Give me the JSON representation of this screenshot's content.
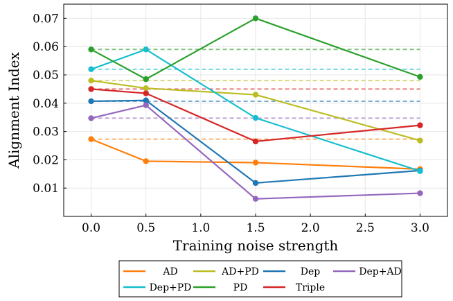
{
  "chart_data": {
    "type": "line",
    "xlabel": "Training noise strength",
    "ylabel": "Alignment Index",
    "xlim": [
      -0.25,
      3.25
    ],
    "ylim": [
      0.0,
      0.075
    ],
    "x_ticks": [
      0.0,
      0.5,
      1.0,
      1.5,
      2.0,
      2.5,
      3.0
    ],
    "x_tick_labels": [
      "0.0",
      "0.5",
      "1.0",
      "1.5",
      "2.0",
      "2.5",
      "3.0"
    ],
    "y_ticks": [
      0.01,
      0.02,
      0.03,
      0.04,
      0.05,
      0.06,
      0.07
    ],
    "y_tick_labels": [
      "0.01",
      "0.02",
      "0.03",
      "0.04",
      "0.05",
      "0.06",
      "0.07"
    ],
    "grid": true,
    "legend_position": "bottom",
    "x": [
      0.0,
      0.5,
      1.5,
      3.0
    ],
    "series": [
      {
        "name": "AD",
        "color": "#ff7f0e",
        "values": [
          0.0273,
          0.0195,
          0.019,
          0.0167
        ],
        "baseline": 0.0273
      },
      {
        "name": "AD+PD",
        "color": "#bcbd22",
        "values": [
          0.048,
          0.0453,
          0.043,
          0.0268
        ],
        "baseline": 0.048
      },
      {
        "name": "Dep",
        "color": "#1f77b4",
        "values": [
          0.0407,
          0.041,
          0.0118,
          0.0162
        ],
        "baseline": 0.0407
      },
      {
        "name": "Dep+AD",
        "color": "#9467bd",
        "values": [
          0.0347,
          0.0393,
          0.0062,
          0.0082
        ],
        "baseline": 0.0347
      },
      {
        "name": "Dep+PD",
        "color": "#17becf",
        "values": [
          0.052,
          0.059,
          0.0348,
          0.016
        ],
        "baseline": 0.052
      },
      {
        "name": "PD",
        "color": "#2ca02c",
        "values": [
          0.059,
          0.0485,
          0.07,
          0.0493
        ],
        "baseline": 0.059
      },
      {
        "name": "Triple",
        "color": "#d62728",
        "values": [
          0.045,
          0.0435,
          0.0265,
          0.0322
        ],
        "baseline": 0.045
      }
    ]
  }
}
